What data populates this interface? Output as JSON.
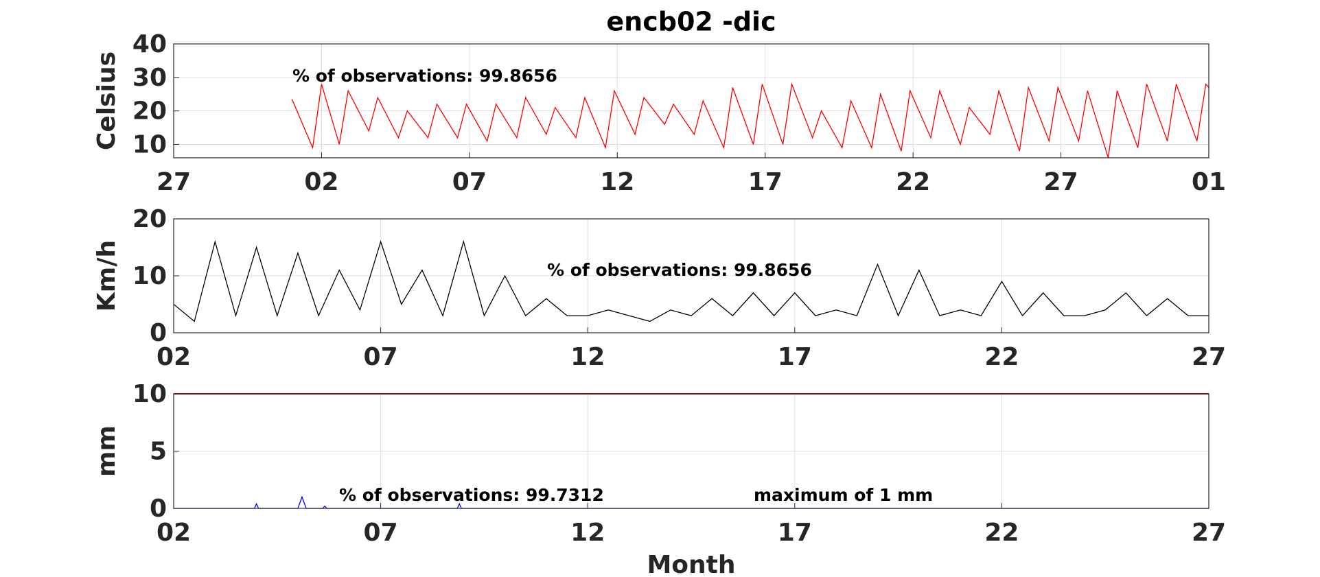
{
  "chart_data": [
    {
      "type": "line",
      "title": "encb02 -dic",
      "ylabel": "Celsius",
      "annotations": [
        "% of observations: 99.8656"
      ],
      "xlim": [
        0,
        35
      ],
      "xticks": [
        {
          "value": 0,
          "label": "27"
        },
        {
          "value": 5,
          "label": "02"
        },
        {
          "value": 10,
          "label": "07"
        },
        {
          "value": 15,
          "label": "12"
        },
        {
          "value": 20,
          "label": "17"
        },
        {
          "value": 25,
          "label": "22"
        },
        {
          "value": 30,
          "label": "27"
        },
        {
          "value": 35,
          "label": "01"
        }
      ],
      "ylim": [
        6,
        40
      ],
      "yticks": [
        10,
        20,
        30,
        40
      ],
      "grid": true,
      "series": [
        {
          "color": "#ff0000",
          "x": [
            4.0,
            4.7,
            5.0,
            5.6,
            5.9,
            6.6,
            6.9,
            7.6,
            7.9,
            8.6,
            8.9,
            9.6,
            9.9,
            10.6,
            10.9,
            11.6,
            11.9,
            12.6,
            12.9,
            13.6,
            13.9,
            14.6,
            14.9,
            15.6,
            15.9,
            16.6,
            16.9,
            17.6,
            17.9,
            18.6,
            18.9,
            19.6,
            19.9,
            20.6,
            20.9,
            21.6,
            21.9,
            22.6,
            22.9,
            23.6,
            23.9,
            24.6,
            24.9,
            25.6,
            25.9,
            26.6,
            26.9,
            27.6,
            27.9,
            28.6,
            28.9,
            29.6,
            29.9,
            30.6,
            30.9,
            31.6,
            31.9,
            32.6,
            32.9,
            33.6,
            33.9,
            34.6,
            34.9,
            35.0
          ],
          "values": [
            23.5,
            9,
            28,
            10,
            26,
            14,
            24,
            12,
            20,
            12,
            22,
            12,
            22,
            11,
            22,
            12,
            24,
            13,
            21,
            12,
            24,
            9,
            26,
            13,
            24,
            16,
            22,
            13,
            23,
            9,
            27,
            10,
            28,
            10,
            28,
            12,
            20,
            9,
            23,
            9,
            25,
            8,
            26,
            12,
            26,
            10,
            21,
            13,
            26,
            8,
            27,
            11,
            27,
            11,
            26,
            6,
            26,
            9,
            28,
            11,
            28,
            11,
            28,
            27
          ]
        }
      ]
    },
    {
      "type": "line",
      "ylabel": "Km/h",
      "annotations": [
        "% of observations: 99.8656"
      ],
      "xlim": [
        0,
        25
      ],
      "xticks": [
        {
          "value": 0,
          "label": "02"
        },
        {
          "value": 5,
          "label": "07"
        },
        {
          "value": 10,
          "label": "12"
        },
        {
          "value": 15,
          "label": "17"
        },
        {
          "value": 20,
          "label": "22"
        },
        {
          "value": 25,
          "label": "27"
        }
      ],
      "ylim": [
        0,
        20
      ],
      "yticks": [
        0,
        10,
        20
      ],
      "grid": true,
      "series": [
        {
          "color": "#000000",
          "x": [
            0,
            0.5,
            1,
            1.5,
            2,
            2.5,
            3,
            3.5,
            4,
            4.5,
            5,
            5.5,
            6,
            6.5,
            7,
            7.5,
            8,
            8.5,
            9,
            9.5,
            10,
            10.5,
            11,
            11.5,
            12,
            12.5,
            13,
            13.5,
            14,
            14.5,
            15,
            15.5,
            16,
            16.5,
            17,
            17.5,
            18,
            18.5,
            19,
            19.5,
            20,
            20.5,
            21,
            21.5,
            22,
            22.5,
            23,
            23.5,
            24,
            24.5,
            25
          ],
          "values": [
            5,
            2,
            16,
            3,
            15,
            3,
            14,
            3,
            11,
            4,
            16,
            5,
            11,
            3,
            16,
            3,
            10,
            3,
            6,
            3,
            3,
            4,
            3,
            2,
            4,
            3,
            6,
            3,
            7,
            3,
            7,
            3,
            4,
            3,
            12,
            3,
            11,
            3,
            4,
            3,
            9,
            3,
            7,
            3,
            3,
            4,
            7,
            3,
            6,
            3,
            3
          ]
        }
      ]
    },
    {
      "type": "line",
      "ylabel": "mm",
      "xlabel": "Month",
      "annotations": [
        "% of observations: 99.7312",
        "maximum of 1 mm"
      ],
      "xlim": [
        0,
        25
      ],
      "xticks": [
        {
          "value": 0,
          "label": "02"
        },
        {
          "value": 5,
          "label": "07"
        },
        {
          "value": 10,
          "label": "12"
        },
        {
          "value": 15,
          "label": "17"
        },
        {
          "value": 20,
          "label": "22"
        },
        {
          "value": 25,
          "label": "27"
        }
      ],
      "ylim": [
        0,
        10
      ],
      "yticks": [
        0,
        5,
        10
      ],
      "grid": true,
      "reference_line": {
        "value": 10,
        "color": "#e00000"
      },
      "series": [
        {
          "color": "#0000ff",
          "x": [
            0,
            1.95,
            2.0,
            2.05,
            3.0,
            3.1,
            3.2,
            3.6,
            3.65,
            3.7,
            6.85,
            6.9,
            6.95,
            25
          ],
          "values": [
            0,
            0,
            0.4,
            0,
            0,
            1,
            0,
            0,
            0.2,
            0,
            0,
            0.4,
            0,
            0
          ]
        }
      ]
    }
  ]
}
